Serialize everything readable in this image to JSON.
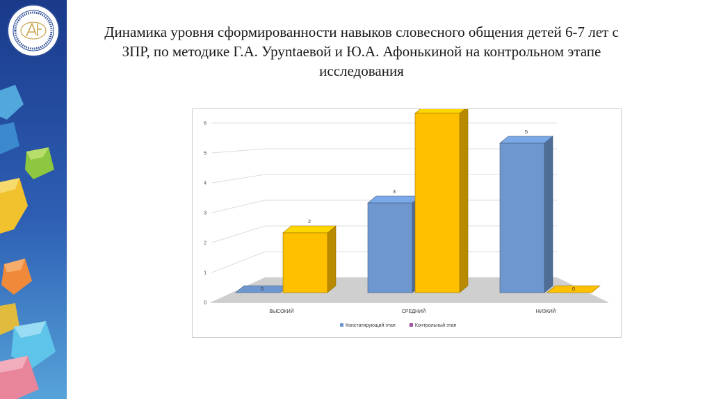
{
  "title": "Динамика уровня сформированности навыков словесного общения детей 6-7 лет с ЗПР, по методике Г.А. Уруntaевой и Ю.А. Афонькиной на контрольном этапе исследования",
  "colors": {
    "series1": "#6e97cf",
    "series2": "#ffc000",
    "legend_series2": "#9b4f96",
    "sidebar_bg": "#1f3d8c"
  },
  "chart_data": {
    "type": "bar",
    "categories": [
      "ВЫСОКИЙ",
      "СРЕДНИЙ",
      "НИЗКИЙ"
    ],
    "series": [
      {
        "name": "Констатирующий этап",
        "values": [
          0,
          3,
          5
        ]
      },
      {
        "name": "Контрольный этап",
        "values": [
          2,
          6,
          0
        ]
      }
    ],
    "yticks": [
      "0",
      "1",
      "2",
      "3",
      "4",
      "5",
      "6"
    ],
    "ylim": [
      0,
      6
    ],
    "grid": true,
    "legend": "bottom",
    "style": "3d-column"
  }
}
